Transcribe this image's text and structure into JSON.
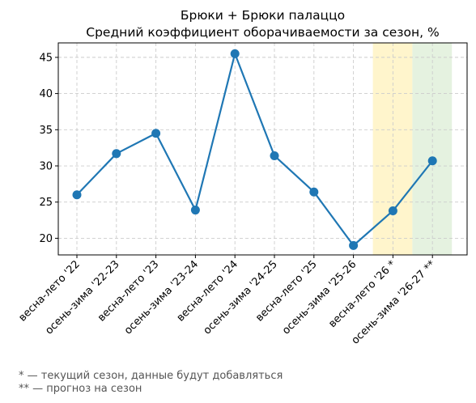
{
  "chart_data": {
    "type": "line",
    "title": "Брюки + Брюки палаццо",
    "subtitle": "Средний коэффициент оборачиваемости за сезон, %",
    "categories": [
      "весна-лето '22",
      "осень-зима '22-23",
      "весна-лето '23",
      "осень-зима '23-24",
      "весна-лето '24",
      "осень-зима '24-25",
      "весна-лето '25",
      "осень-зима '25-26",
      "весна-лето '26 *",
      "осень-зима '26-27 **"
    ],
    "series": [
      {
        "values": [
          26.0,
          31.7,
          34.5,
          23.9,
          45.5,
          31.4,
          26.4,
          19.0,
          23.8,
          30.7
        ],
        "color": "#1f77b4"
      }
    ],
    "ylim": [
      17.7,
      47.0
    ],
    "yticks": [
      20,
      25,
      30,
      35,
      40,
      45
    ],
    "grid": true,
    "highlights": [
      {
        "category_index": 8,
        "color": "#fff5cc"
      },
      {
        "category_index": 9,
        "color": "#e5f2e0"
      }
    ]
  },
  "footnotes": [
    "* — текущий сезон, данные будут добавляться",
    "** — прогноз на сезон"
  ]
}
